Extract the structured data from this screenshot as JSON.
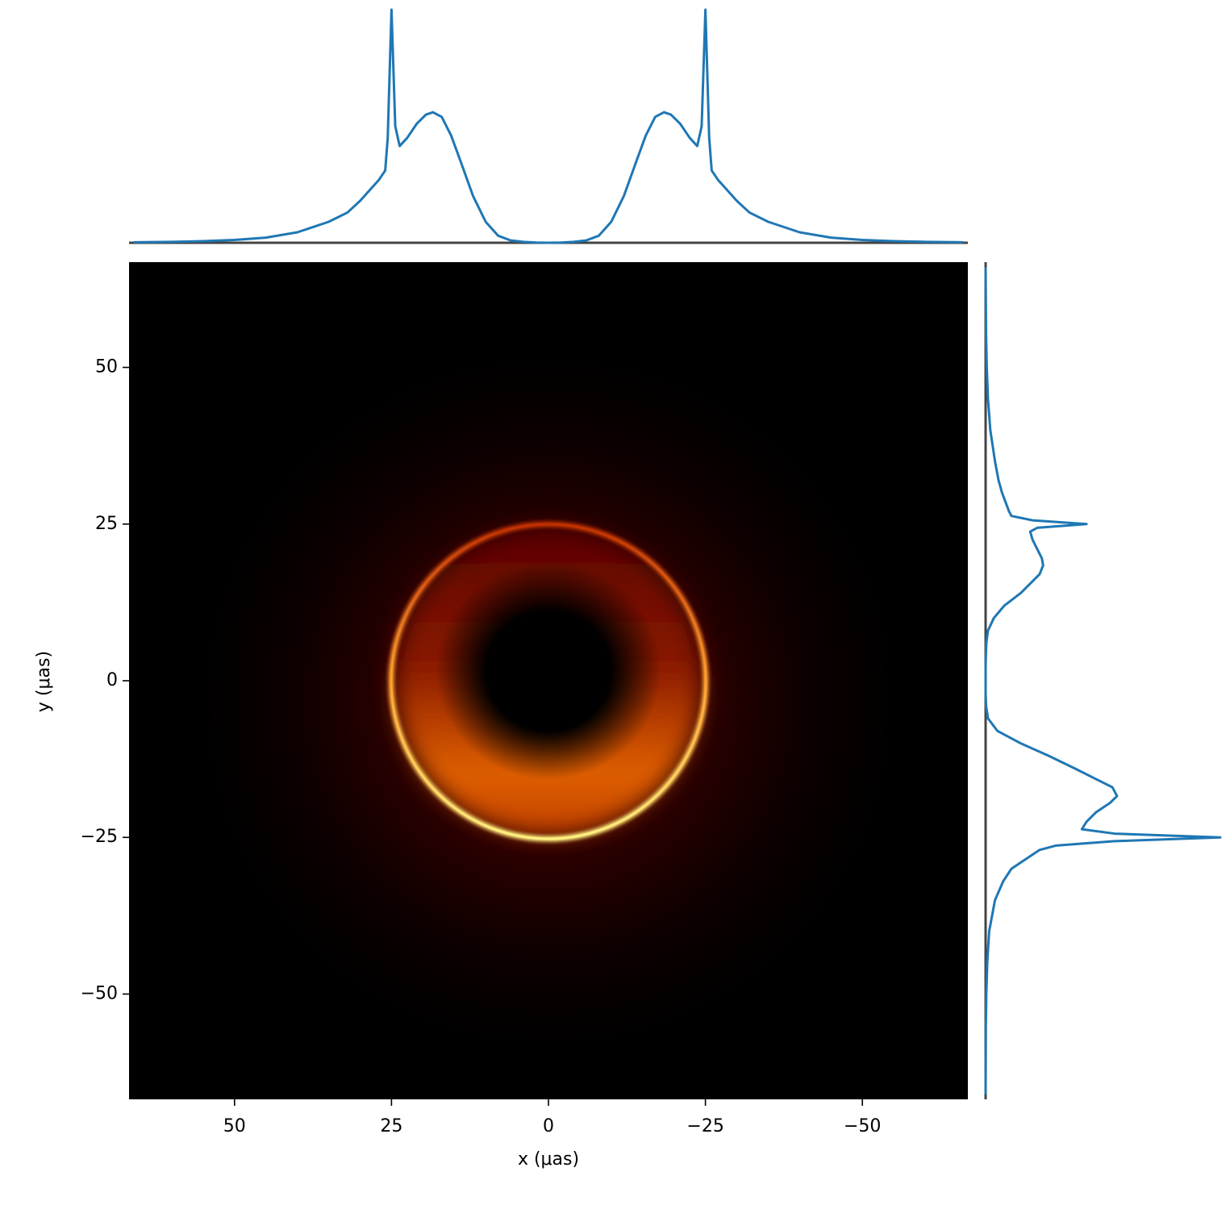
{
  "chart_data": [
    {
      "type": "image",
      "xlabel": "x (μas)",
      "ylabel": "y (μas)",
      "xlim": [
        66.8,
        -66.8
      ],
      "ylim": [
        -66.8,
        66.8
      ],
      "xticks": [
        50,
        25,
        0,
        {
          "value": -25,
          "label": "−25"
        },
        {
          "value": -50,
          "label": "−50"
        }
      ],
      "yticks": [
        {
          "value": -50,
          "label": "−50"
        },
        {
          "value": -25,
          "label": "−25"
        },
        0,
        25,
        50
      ]
    },
    {
      "type": "line",
      "orientation": "horizontal",
      "xlim": [
        66.8,
        -66.8
      ],
      "ylim": [
        0,
        1
      ],
      "x": [
        66,
        60,
        55,
        50,
        45,
        40,
        35,
        32,
        30,
        28,
        27,
        26,
        25.6,
        25,
        24.4,
        23.7,
        22.5,
        21,
        19.5,
        18.4,
        17,
        15.5,
        14,
        12,
        10,
        8,
        6,
        4,
        2,
        0,
        -2,
        -4,
        -6,
        -8,
        -10,
        -12,
        -14,
        -15.5,
        -17,
        -18.4,
        -19.5,
        -21,
        -22.5,
        -23.7,
        -24.4,
        -25,
        -25.6,
        -26,
        -27,
        -28,
        -30,
        -32,
        -35,
        -40,
        -45,
        -50,
        -55,
        -60,
        -66
      ],
      "series": [
        {
          "color": "#1f77b4",
          "values": [
            0.002,
            0.004,
            0.007,
            0.012,
            0.022,
            0.045,
            0.09,
            0.13,
            0.18,
            0.24,
            0.27,
            0.31,
            0.45,
            1.0,
            0.5,
            0.415,
            0.45,
            0.51,
            0.55,
            0.56,
            0.54,
            0.46,
            0.35,
            0.2,
            0.09,
            0.03,
            0.01,
            0.004,
            0.001,
            0,
            0.001,
            0.004,
            0.01,
            0.03,
            0.09,
            0.2,
            0.35,
            0.46,
            0.54,
            0.56,
            0.55,
            0.51,
            0.45,
            0.415,
            0.5,
            1.0,
            0.45,
            0.31,
            0.27,
            0.24,
            0.18,
            0.13,
            0.09,
            0.045,
            0.022,
            0.012,
            0.007,
            0.004,
            0.002
          ]
        }
      ]
    },
    {
      "type": "line",
      "orientation": "vertical",
      "xlim": [
        -66.8,
        66.8
      ],
      "ylim": [
        0,
        1
      ],
      "x": [
        66,
        55,
        50,
        45,
        40,
        35,
        32,
        30,
        28,
        27,
        26.3,
        25.6,
        25,
        24.4,
        23.8,
        22.5,
        21,
        19.5,
        18.4,
        17,
        15.5,
        14,
        12,
        10,
        8,
        6,
        4,
        2,
        0,
        -2,
        -4,
        -6,
        -8,
        -10,
        -12,
        -14,
        -15.5,
        -17,
        -18.4,
        -19.5,
        -21,
        -22.5,
        -23.7,
        -24.4,
        -25,
        -25.6,
        -26.3,
        -27,
        -28,
        -30,
        -32,
        -35,
        -40,
        -45,
        -50,
        -55,
        -66
      ],
      "series": [
        {
          "color": "#1f77b4",
          "values": [
            0,
            0.002,
            0.005,
            0.01,
            0.02,
            0.04,
            0.055,
            0.07,
            0.09,
            0.1,
            0.11,
            0.2,
            0.43,
            0.22,
            0.19,
            0.2,
            0.22,
            0.24,
            0.245,
            0.23,
            0.19,
            0.15,
            0.08,
            0.035,
            0.01,
            0.003,
            0.001,
            0,
            0,
            0,
            0.002,
            0.01,
            0.05,
            0.15,
            0.27,
            0.38,
            0.46,
            0.54,
            0.56,
            0.53,
            0.47,
            0.43,
            0.41,
            0.55,
            1.0,
            0.55,
            0.3,
            0.23,
            0.19,
            0.11,
            0.075,
            0.04,
            0.015,
            0.007,
            0.003,
            0.001,
            0
          ]
        }
      ]
    }
  ]
}
